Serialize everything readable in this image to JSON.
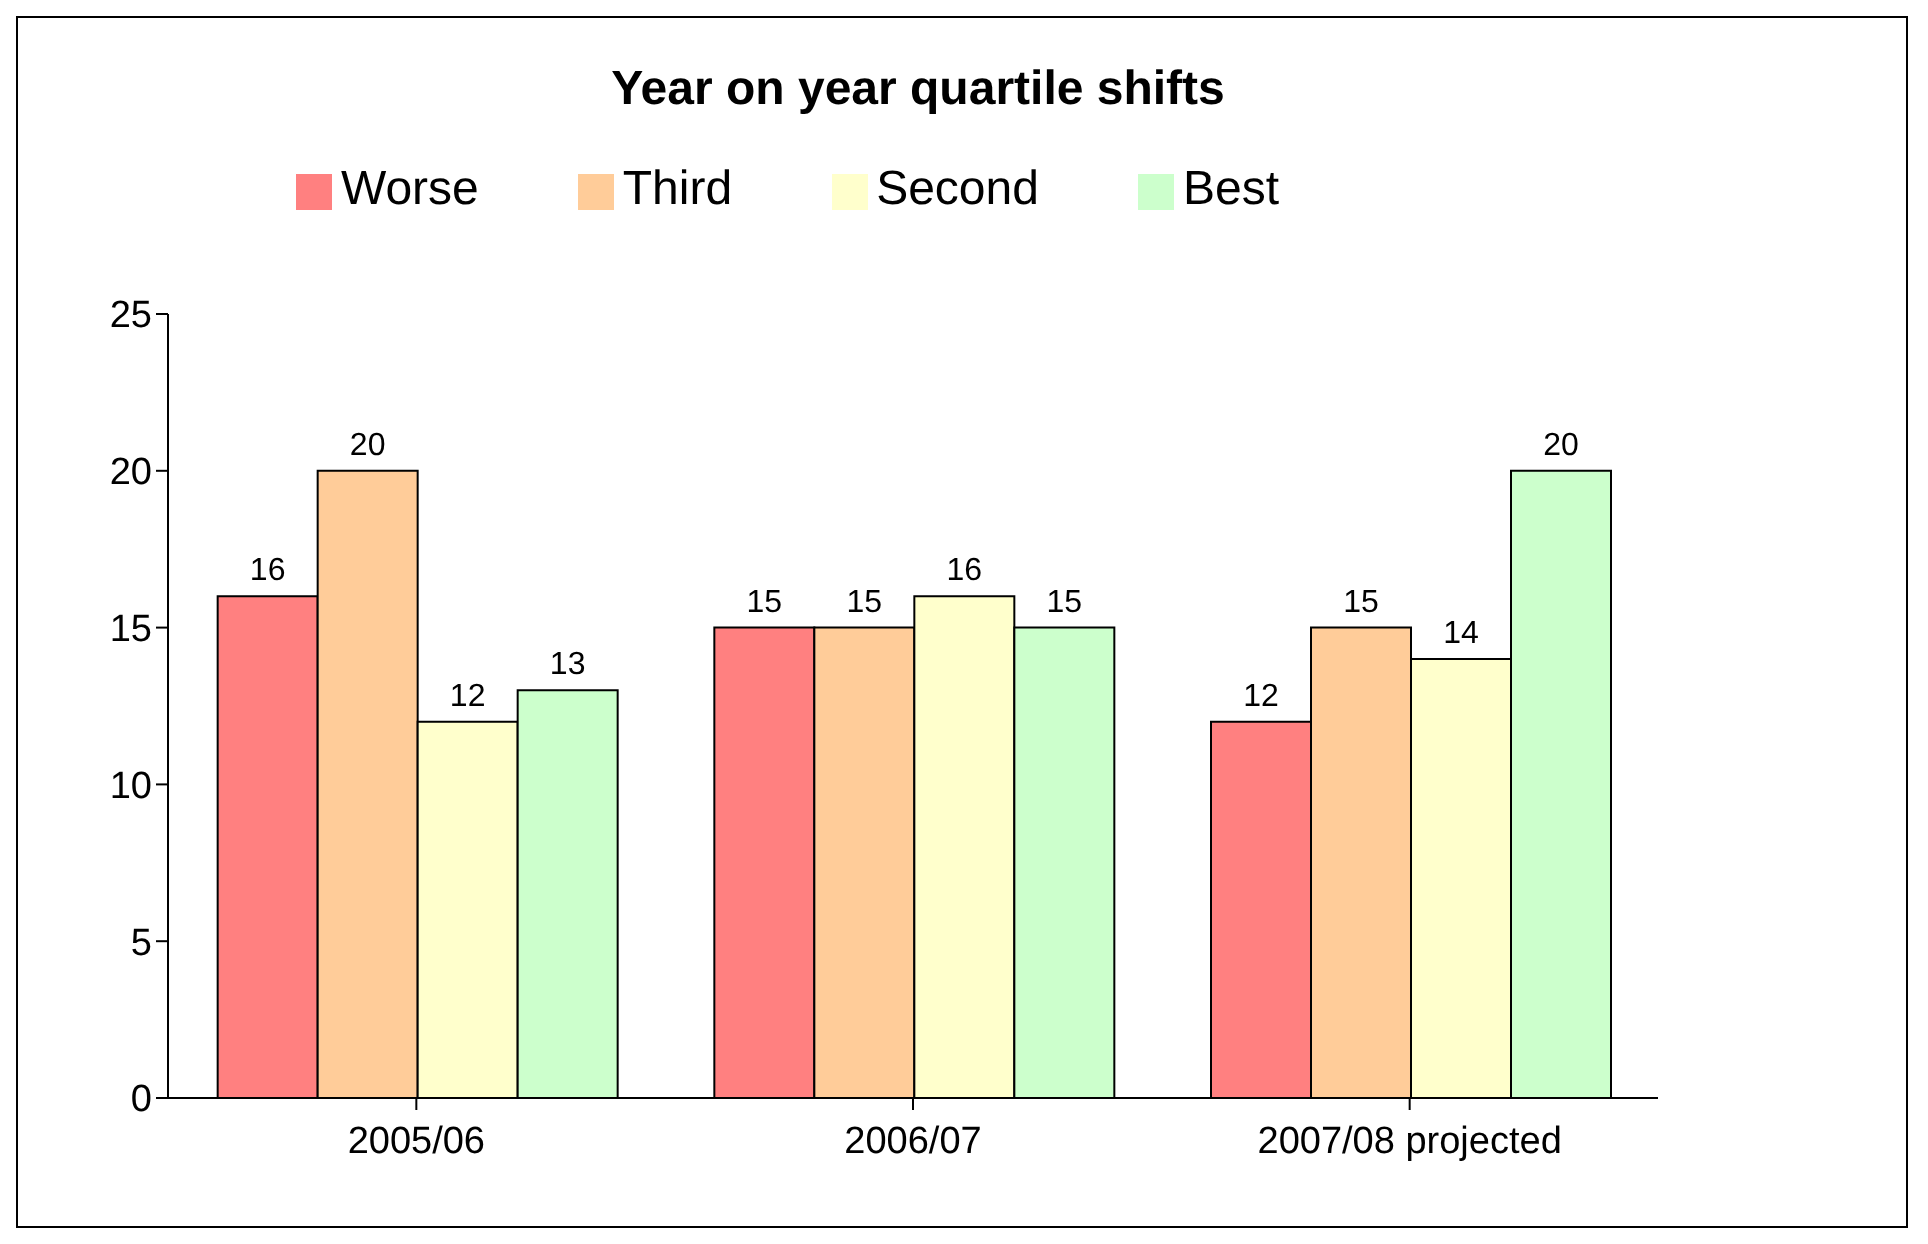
{
  "chart_data": {
    "type": "bar",
    "title": "Year on year quartile shifts",
    "categories": [
      "2005/06",
      "2006/07",
      "2007/08 projected"
    ],
    "series": [
      {
        "name": "Worse",
        "color": "#ff8080",
        "values": [
          16,
          15,
          12
        ]
      },
      {
        "name": "Third",
        "color": "#ffcc99",
        "values": [
          20,
          15,
          15
        ]
      },
      {
        "name": "Second",
        "color": "#ffffcc",
        "values": [
          12,
          16,
          14
        ]
      },
      {
        "name": "Best",
        "color": "#ccffcc",
        "values": [
          13,
          15,
          20
        ]
      }
    ],
    "ylim": [
      0,
      25
    ],
    "yticks": [
      0,
      5,
      10,
      15,
      20,
      25
    ],
    "grid": false,
    "legend": "top",
    "data_labels": true
  }
}
